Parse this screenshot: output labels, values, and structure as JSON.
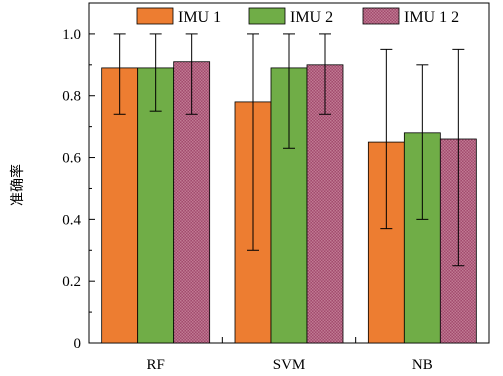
{
  "chart_data": {
    "type": "bar",
    "categories": [
      "RF",
      "SVM",
      "NB"
    ],
    "ylabel": "准确率",
    "xlabel": "",
    "ylim": [
      0,
      1.1
    ],
    "yticks": [
      "0",
      "0.2",
      "0.4",
      "0.6",
      "0.8",
      "1.0"
    ],
    "ytick_values": [
      0,
      0.2,
      0.4,
      0.6,
      0.8,
      1.0
    ],
    "grid": false,
    "legend_position": "top",
    "series": [
      {
        "name": "IMU 1",
        "color": "#ED7D31",
        "values": [
          0.89,
          0.78,
          0.65
        ],
        "error_low": [
          0.74,
          0.3,
          0.37
        ],
        "error_high": [
          1.0,
          1.0,
          0.95
        ]
      },
      {
        "name": "IMU 2",
        "color": "#70AD47",
        "values": [
          0.89,
          0.89,
          0.68
        ],
        "error_low": [
          0.75,
          0.63,
          0.4
        ],
        "error_high": [
          1.0,
          1.0,
          0.9
        ]
      },
      {
        "name": "IMU 1 2",
        "color": "#A24B6D",
        "values": [
          0.91,
          0.9,
          0.66
        ],
        "error_low": [
          0.74,
          0.74,
          0.25
        ],
        "error_high": [
          1.0,
          1.0,
          0.95
        ]
      }
    ]
  }
}
